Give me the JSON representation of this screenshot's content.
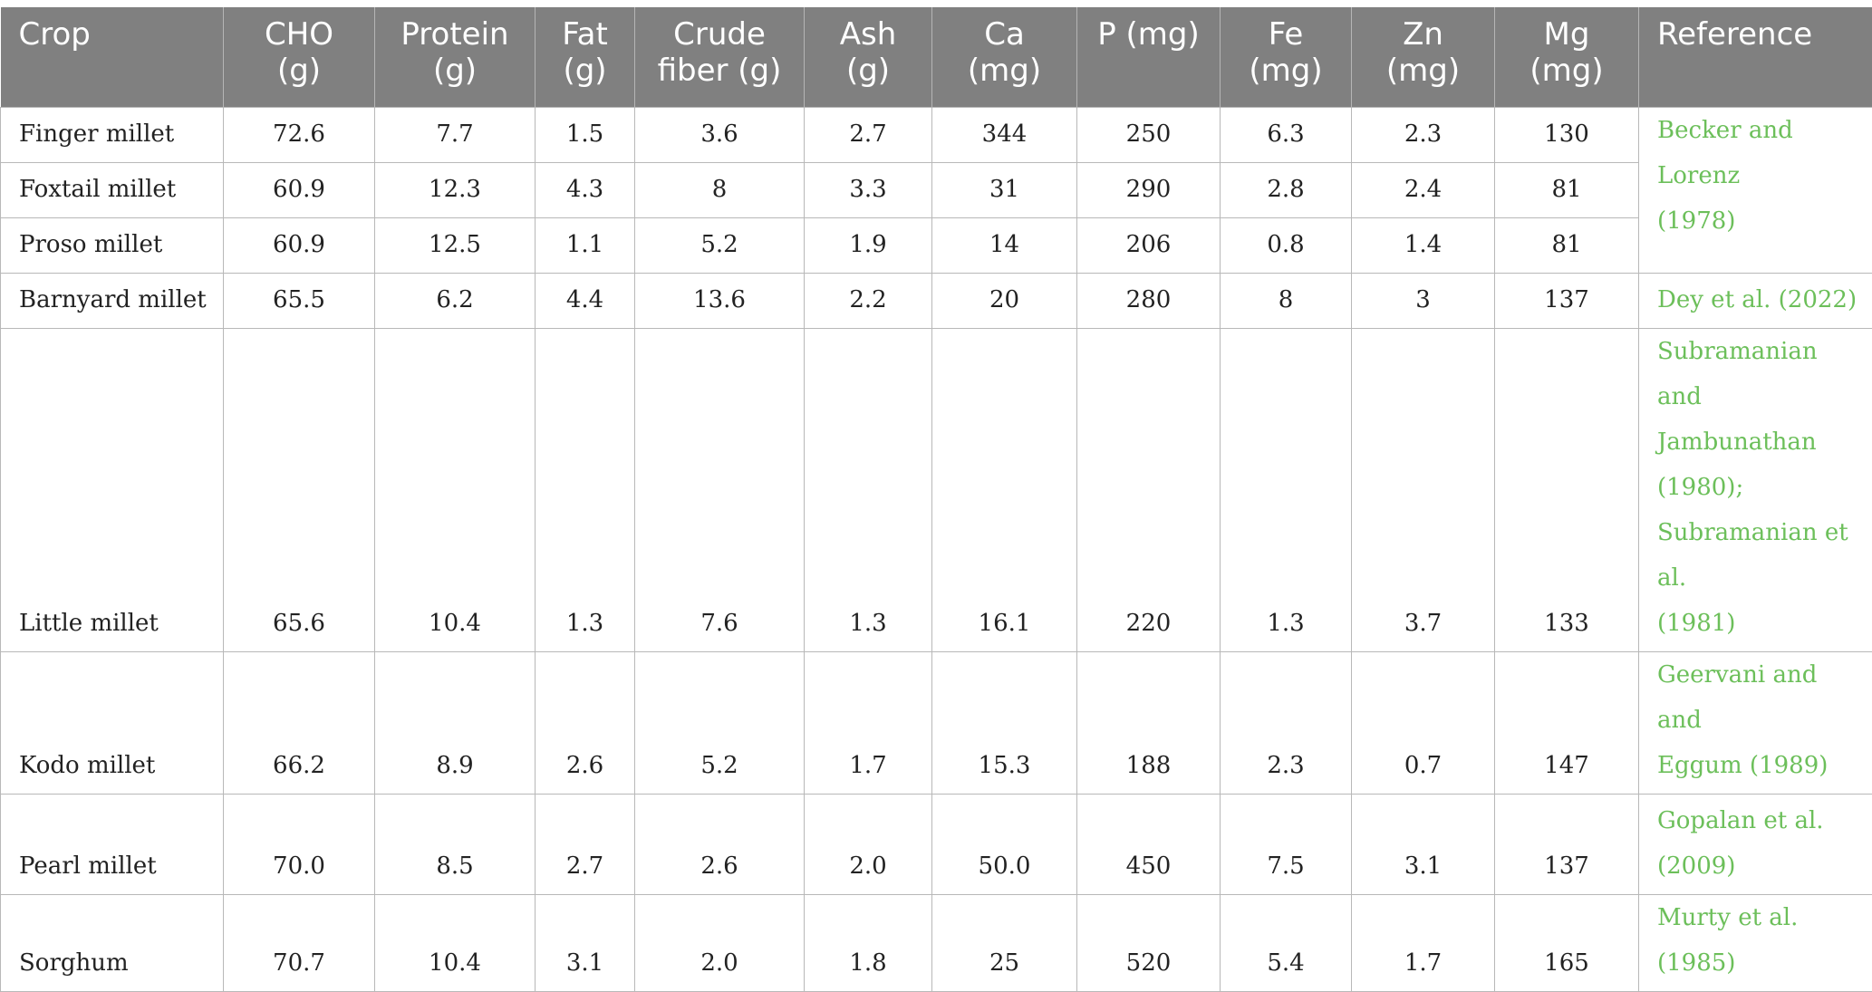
{
  "headers": [
    {
      "line1": "Crop",
      "line2": ""
    },
    {
      "line1": "CHO",
      "line2": "(g)"
    },
    {
      "line1": "Protein",
      "line2": "(g)"
    },
    {
      "line1": "Fat",
      "line2": "(g)"
    },
    {
      "line1": "Crude",
      "line2": "fiber (g)"
    },
    {
      "line1": "Ash",
      "line2": "(g)"
    },
    {
      "line1": "Ca",
      "line2": "(mg)"
    },
    {
      "line1": "P (mg)",
      "line2": ""
    },
    {
      "line1": "Fe",
      "line2": "(mg)"
    },
    {
      "line1": "Zn",
      "line2": "(mg)"
    },
    {
      "line1": "Mg",
      "line2": "(mg)"
    },
    {
      "line1": "Reference",
      "line2": ""
    }
  ],
  "rows": [
    {
      "crop": "Finger millet",
      "values": [
        "72.6",
        "7.7",
        "1.5",
        "3.6",
        "2.7",
        "344",
        "250",
        "6.3",
        "2.3",
        "130"
      ]
    },
    {
      "crop": "Foxtail millet",
      "values": [
        "60.9",
        "12.3",
        "4.3",
        "8",
        "3.3",
        "31",
        "290",
        "2.8",
        "2.4",
        "81"
      ]
    },
    {
      "crop": "Proso millet",
      "values": [
        "60.9",
        "12.5",
        "1.1",
        "5.2",
        "1.9",
        "14",
        "206",
        "0.8",
        "1.4",
        "81"
      ]
    },
    {
      "crop": "Barnyard millet",
      "values": [
        "65.5",
        "6.2",
        "4.4",
        "13.6",
        "2.2",
        "20",
        "280",
        "8",
        "3",
        "137"
      ]
    },
    {
      "crop": "Little millet",
      "values": [
        "65.6",
        "10.4",
        "1.3",
        "7.6",
        "1.3",
        "16.1",
        "220",
        "1.3",
        "3.7",
        "133"
      ]
    },
    {
      "crop": "Kodo millet",
      "values": [
        "66.2",
        "8.9",
        "2.6",
        "5.2",
        "1.7",
        "15.3",
        "188",
        "2.3",
        "0.7",
        "147"
      ]
    },
    {
      "crop": "Pearl millet",
      "values": [
        "70.0",
        "8.5",
        "2.7",
        "2.6",
        "2.0",
        "50.0",
        "450",
        "7.5",
        "3.1",
        "137"
      ]
    },
    {
      "crop": "Sorghum",
      "values": [
        "70.7",
        "10.4",
        "3.1",
        "2.0",
        "1.8",
        "25",
        "520",
        "5.4",
        "1.7",
        "165"
      ]
    }
  ],
  "references": [
    {
      "lines": [
        "Becker and Lorenz",
        "(1978)"
      ]
    },
    {
      "lines": [
        "Dey et al. (2022)"
      ]
    },
    {
      "lines": [
        "Subramanian and",
        "Jambunathan",
        "(1980);",
        "Subramanian et al.",
        "(1981)"
      ]
    },
    {
      "lines": [
        "Geervani and and",
        "Eggum (1989)"
      ]
    },
    {
      "lines": [
        "Gopalan et al.",
        "(2009)"
      ]
    },
    {
      "lines": [
        "Murty et al. (1985)"
      ]
    }
  ],
  "colors": {
    "header_bg": "#808080",
    "header_text": "#ffffff",
    "reference_text": "#6cbf5a",
    "grid": "#b8b8b8"
  }
}
